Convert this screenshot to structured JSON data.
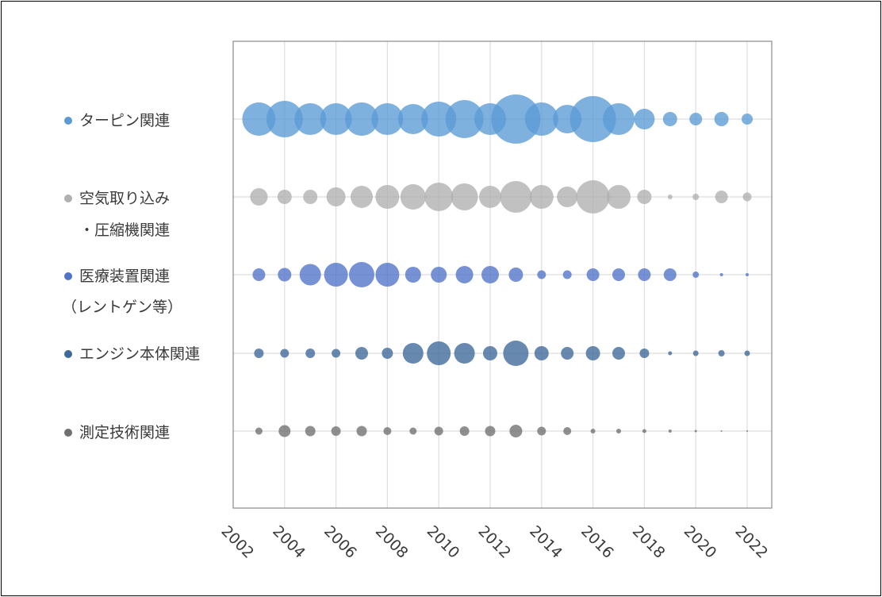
{
  "chart_data": {
    "type": "bubble",
    "title": "",
    "xlabel": "",
    "ylabel": "",
    "x_ticks": [
      "2002",
      "2004",
      "2006",
      "2008",
      "2010",
      "2012",
      "2014",
      "2016",
      "2018",
      "2020",
      "2022"
    ],
    "xlim": [
      2002,
      2022
    ],
    "grid": true,
    "legend_position": "left",
    "value_note": "relative size (bubble diameter, arbitrary units)",
    "series": [
      {
        "name_lines": [
          "ターピン関連"
        ],
        "color": "#5b9bd5",
        "points": [
          {
            "x": 2003,
            "size": 42
          },
          {
            "x": 2004,
            "size": 46
          },
          {
            "x": 2005,
            "size": 40
          },
          {
            "x": 2006,
            "size": 40
          },
          {
            "x": 2007,
            "size": 42
          },
          {
            "x": 2008,
            "size": 40
          },
          {
            "x": 2009,
            "size": 38
          },
          {
            "x": 2010,
            "size": 44
          },
          {
            "x": 2011,
            "size": 48
          },
          {
            "x": 2012,
            "size": 40
          },
          {
            "x": 2013,
            "size": 62
          },
          {
            "x": 2014,
            "size": 42
          },
          {
            "x": 2015,
            "size": 36
          },
          {
            "x": 2016,
            "size": 58
          },
          {
            "x": 2017,
            "size": 40
          },
          {
            "x": 2018,
            "size": 26
          },
          {
            "x": 2019,
            "size": 18
          },
          {
            "x": 2020,
            "size": 16
          },
          {
            "x": 2021,
            "size": 18
          },
          {
            "x": 2022,
            "size": 14
          }
        ]
      },
      {
        "name_lines": [
          "空気取り込み",
          "・圧縮機関連"
        ],
        "color": "#b0b0b0",
        "points": [
          {
            "x": 2003,
            "size": 22
          },
          {
            "x": 2004,
            "size": 18
          },
          {
            "x": 2005,
            "size": 18
          },
          {
            "x": 2006,
            "size": 24
          },
          {
            "x": 2007,
            "size": 28
          },
          {
            "x": 2008,
            "size": 30
          },
          {
            "x": 2009,
            "size": 32
          },
          {
            "x": 2010,
            "size": 36
          },
          {
            "x": 2011,
            "size": 34
          },
          {
            "x": 2012,
            "size": 28
          },
          {
            "x": 2013,
            "size": 40
          },
          {
            "x": 2014,
            "size": 30
          },
          {
            "x": 2015,
            "size": 26
          },
          {
            "x": 2016,
            "size": 42
          },
          {
            "x": 2017,
            "size": 30
          },
          {
            "x": 2018,
            "size": 18
          },
          {
            "x": 2019,
            "size": 6
          },
          {
            "x": 2020,
            "size": 8
          },
          {
            "x": 2021,
            "size": 16
          },
          {
            "x": 2022,
            "size": 11
          }
        ]
      },
      {
        "name_lines": [
          "医療装置関連",
          "（レントゲン等）"
        ],
        "color": "#4f73c9",
        "points": [
          {
            "x": 2003,
            "size": 16
          },
          {
            "x": 2004,
            "size": 17
          },
          {
            "x": 2005,
            "size": 27
          },
          {
            "x": 2006,
            "size": 30
          },
          {
            "x": 2007,
            "size": 32
          },
          {
            "x": 2008,
            "size": 30
          },
          {
            "x": 2009,
            "size": 20
          },
          {
            "x": 2010,
            "size": 20
          },
          {
            "x": 2011,
            "size": 22
          },
          {
            "x": 2012,
            "size": 22
          },
          {
            "x": 2013,
            "size": 18
          },
          {
            "x": 2014,
            "size": 11
          },
          {
            "x": 2015,
            "size": 11
          },
          {
            "x": 2016,
            "size": 16
          },
          {
            "x": 2017,
            "size": 16
          },
          {
            "x": 2018,
            "size": 16
          },
          {
            "x": 2019,
            "size": 16
          },
          {
            "x": 2020,
            "size": 8
          },
          {
            "x": 2021,
            "size": 4
          },
          {
            "x": 2022,
            "size": 4
          }
        ]
      },
      {
        "name_lines": [
          "エンジン本体関連"
        ],
        "color": "#3d6899",
        "points": [
          {
            "x": 2003,
            "size": 12
          },
          {
            "x": 2004,
            "size": 11
          },
          {
            "x": 2005,
            "size": 12
          },
          {
            "x": 2006,
            "size": 11
          },
          {
            "x": 2007,
            "size": 16
          },
          {
            "x": 2008,
            "size": 14
          },
          {
            "x": 2009,
            "size": 26
          },
          {
            "x": 2010,
            "size": 30
          },
          {
            "x": 2011,
            "size": 26
          },
          {
            "x": 2012,
            "size": 18
          },
          {
            "x": 2013,
            "size": 32
          },
          {
            "x": 2014,
            "size": 18
          },
          {
            "x": 2015,
            "size": 16
          },
          {
            "x": 2016,
            "size": 18
          },
          {
            "x": 2017,
            "size": 16
          },
          {
            "x": 2018,
            "size": 12
          },
          {
            "x": 2019,
            "size": 5
          },
          {
            "x": 2020,
            "size": 7
          },
          {
            "x": 2021,
            "size": 8
          },
          {
            "x": 2022,
            "size": 7
          }
        ]
      },
      {
        "name_lines": [
          "測定技術関連"
        ],
        "color": "#707070",
        "points": [
          {
            "x": 2003,
            "size": 9
          },
          {
            "x": 2004,
            "size": 15
          },
          {
            "x": 2005,
            "size": 13
          },
          {
            "x": 2006,
            "size": 12
          },
          {
            "x": 2007,
            "size": 13
          },
          {
            "x": 2008,
            "size": 10
          },
          {
            "x": 2009,
            "size": 9
          },
          {
            "x": 2010,
            "size": 11
          },
          {
            "x": 2011,
            "size": 12
          },
          {
            "x": 2012,
            "size": 13
          },
          {
            "x": 2013,
            "size": 16
          },
          {
            "x": 2014,
            "size": 11
          },
          {
            "x": 2015,
            "size": 10
          },
          {
            "x": 2016,
            "size": 6
          },
          {
            "x": 2017,
            "size": 6
          },
          {
            "x": 2018,
            "size": 5
          },
          {
            "x": 2019,
            "size": 4
          },
          {
            "x": 2020,
            "size": 3
          },
          {
            "x": 2021,
            "size": 2
          },
          {
            "x": 2022,
            "size": 2
          }
        ]
      }
    ]
  }
}
